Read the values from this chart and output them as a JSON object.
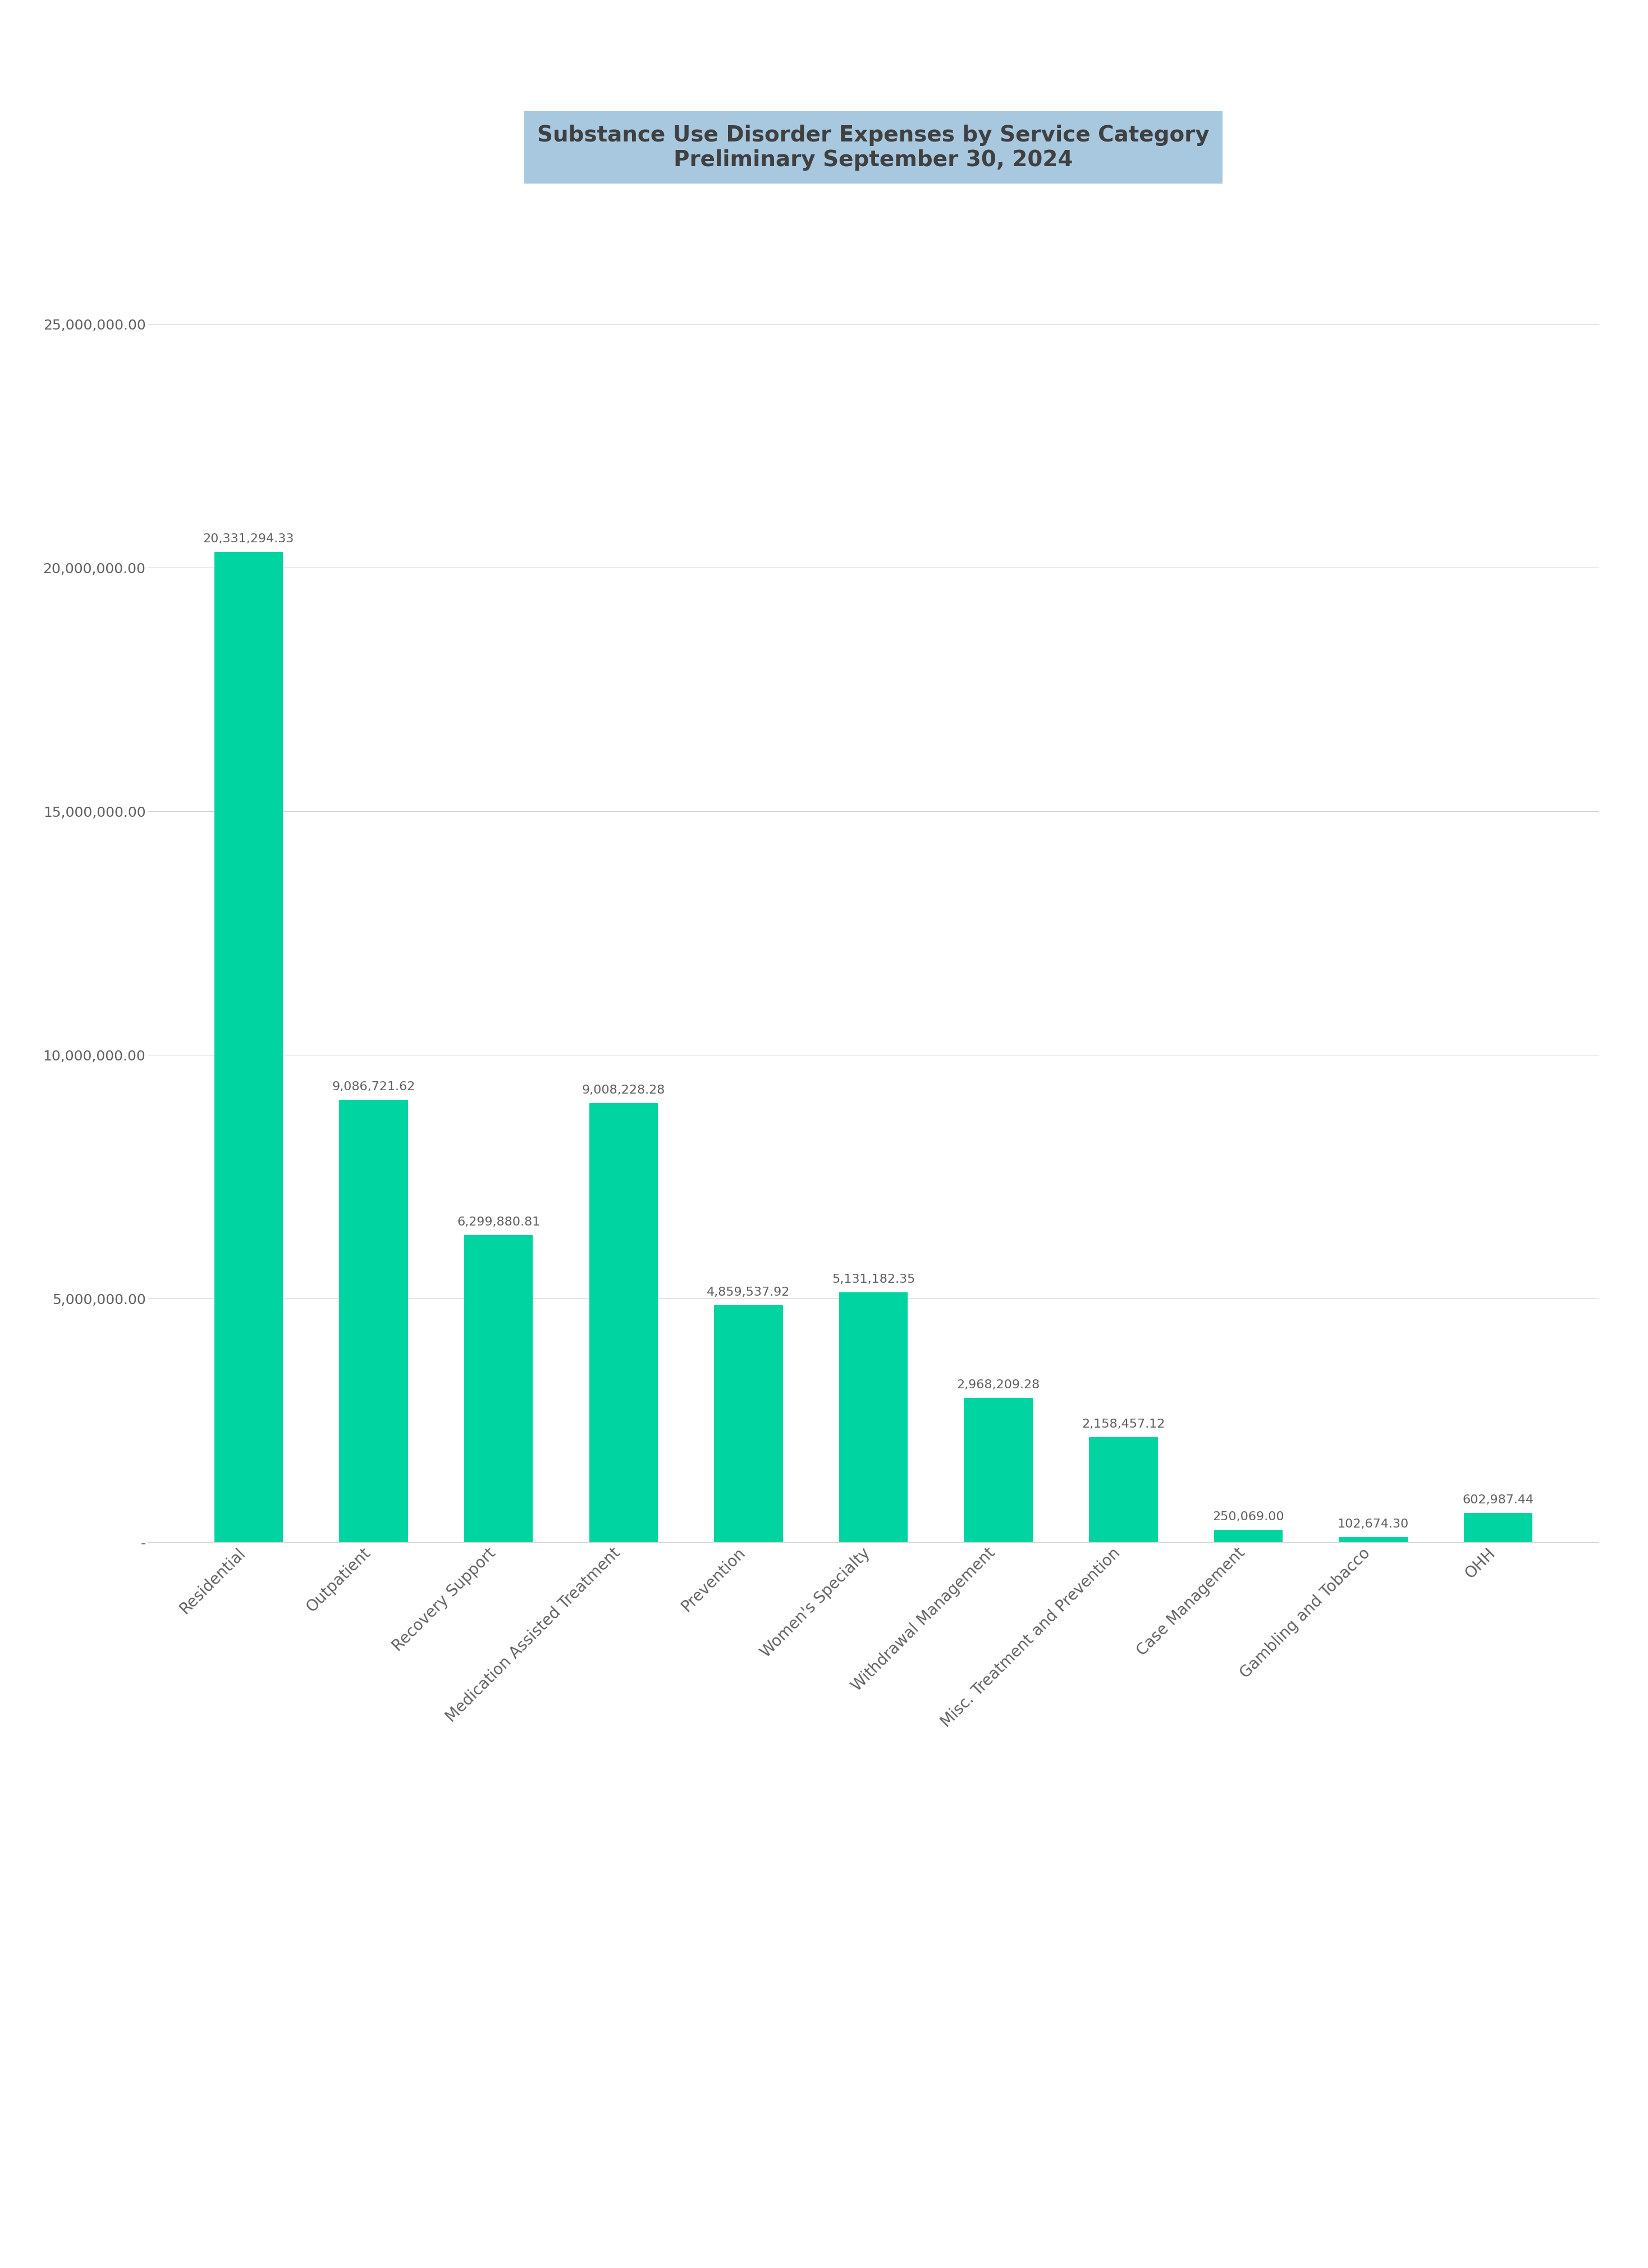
{
  "title_line1": "Substance Use Disorder Expenses by Service Category",
  "title_line2": "Preliminary September 30, 2024",
  "title_bg_color": "#a8c8e0",
  "title_text_color": "#404040",
  "bar_color": "#00d4a0",
  "background_color": "#ffffff",
  "categories": [
    "Residential",
    "Outpatient",
    "Recovery Support",
    "Medication Assisted Treatment",
    "Prevention",
    "Women's Specialty",
    "Withdrawal Management",
    "Misc. Treatment and Prevention",
    "Case Management",
    "Gambling and Tobacco",
    "OHH"
  ],
  "values": [
    20331294.33,
    9086721.62,
    6299880.81,
    9008228.28,
    4859537.92,
    5131182.35,
    2968209.28,
    2158457.12,
    250069.0,
    102674.3,
    602987.44
  ],
  "value_labels": [
    "20,331,294.33",
    "9,086,721.62",
    "6,299,880.81",
    "9,008,228.28",
    "4,859,537.92",
    "5,131,182.35",
    "2,968,209.28",
    "2,158,457.12",
    "250,069.00",
    "102,674.30",
    "602,987.44"
  ],
  "ytick_labels": [
    "-",
    "5,000,000.00",
    "10,000,000.00",
    "15,000,000.00",
    "20,000,000.00",
    "25,000,000.00"
  ],
  "ytick_values": [
    0,
    5000000,
    10000000,
    15000000,
    20000000,
    25000000
  ],
  "ylim": [
    0,
    27000000
  ],
  "grid_color": "#d0d0d0",
  "tick_color": "#606060",
  "label_fontsize": 20,
  "value_label_fontsize": 16,
  "title_fontsize": 28,
  "tick_label_fontsize": 18
}
